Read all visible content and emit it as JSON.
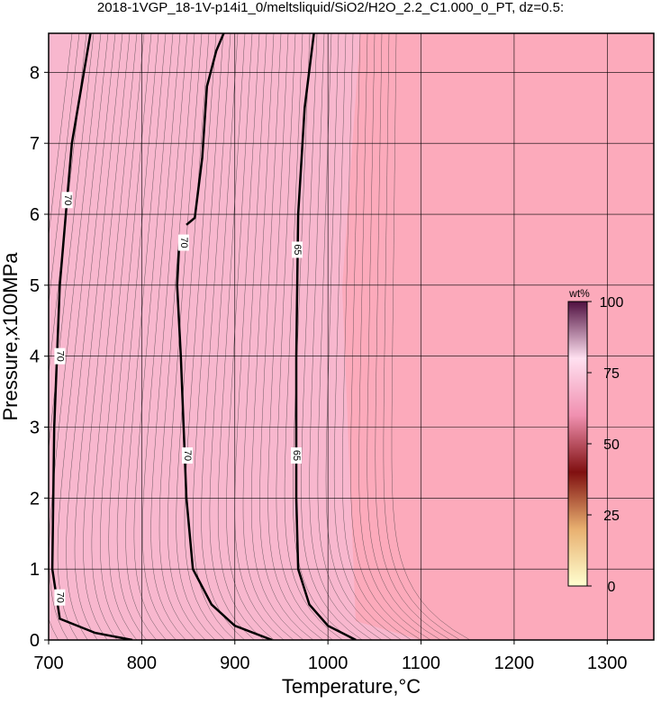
{
  "chart_data": {
    "type": "contour",
    "title": "2018-1VGP_18-1V-p14i1_0/meltsliquid/SiO2/H2O_2.2_C1.000_0_PT, dz=0.5:",
    "x_label": "Temperature,°C",
    "y_label": "Pressure,x100MPa",
    "xlim": [
      700,
      1350
    ],
    "ylim": [
      0,
      8.55
    ],
    "xticks": [
      700,
      800,
      900,
      1000,
      1100,
      1200,
      1300
    ],
    "yticks": [
      0,
      1,
      2,
      3,
      4,
      5,
      6,
      7,
      8
    ],
    "grid": true,
    "contours": [
      {
        "level": 70,
        "x": [
          790,
          750,
          712,
          704,
          706,
          712,
          725,
          745
        ],
        "y": [
          0,
          0.1,
          0.3,
          1,
          3,
          5,
          7,
          8.55
        ],
        "labels": [
          {
            "x": 712,
            "y": 4.0
          },
          {
            "x": 712,
            "y": 0.6
          },
          {
            "x": 720,
            "y": 6.2
          }
        ]
      },
      {
        "level": 70,
        "x": [
          940,
          900,
          875,
          855,
          848,
          845,
          842,
          838,
          840
        ],
        "y": [
          0,
          0.2,
          0.5,
          1,
          2,
          3,
          4,
          5,
          5.5
        ],
        "labels": [
          {
            "x": 849,
            "y": 2.6
          }
        ]
      },
      {
        "level": 70,
        "x": [
          848,
          857,
          865,
          870,
          880,
          888
        ],
        "y": [
          5.85,
          5.95,
          6.8,
          7.8,
          8.3,
          8.55
        ],
        "labels": [
          {
            "x": 845,
            "y": 5.6
          }
        ]
      },
      {
        "level": 65,
        "x": [
          1030,
          1000,
          980,
          968,
          966,
          966,
          968,
          975,
          985
        ],
        "y": [
          0,
          0.2,
          0.5,
          1,
          2,
          4,
          6,
          7.5,
          8.55
        ],
        "labels": [
          {
            "x": 966,
            "y": 2.6
          },
          {
            "x": 967,
            "y": 5.5
          }
        ]
      }
    ],
    "colorbar": {
      "label": "wt%",
      "lim": [
        0,
        100
      ],
      "ticks": [
        0,
        25,
        50,
        75,
        100
      ],
      "colors": [
        "#ffffd0",
        "#e8b070",
        "#801010",
        "#f090b0",
        "#ffe0f0",
        "#501040"
      ]
    }
  }
}
